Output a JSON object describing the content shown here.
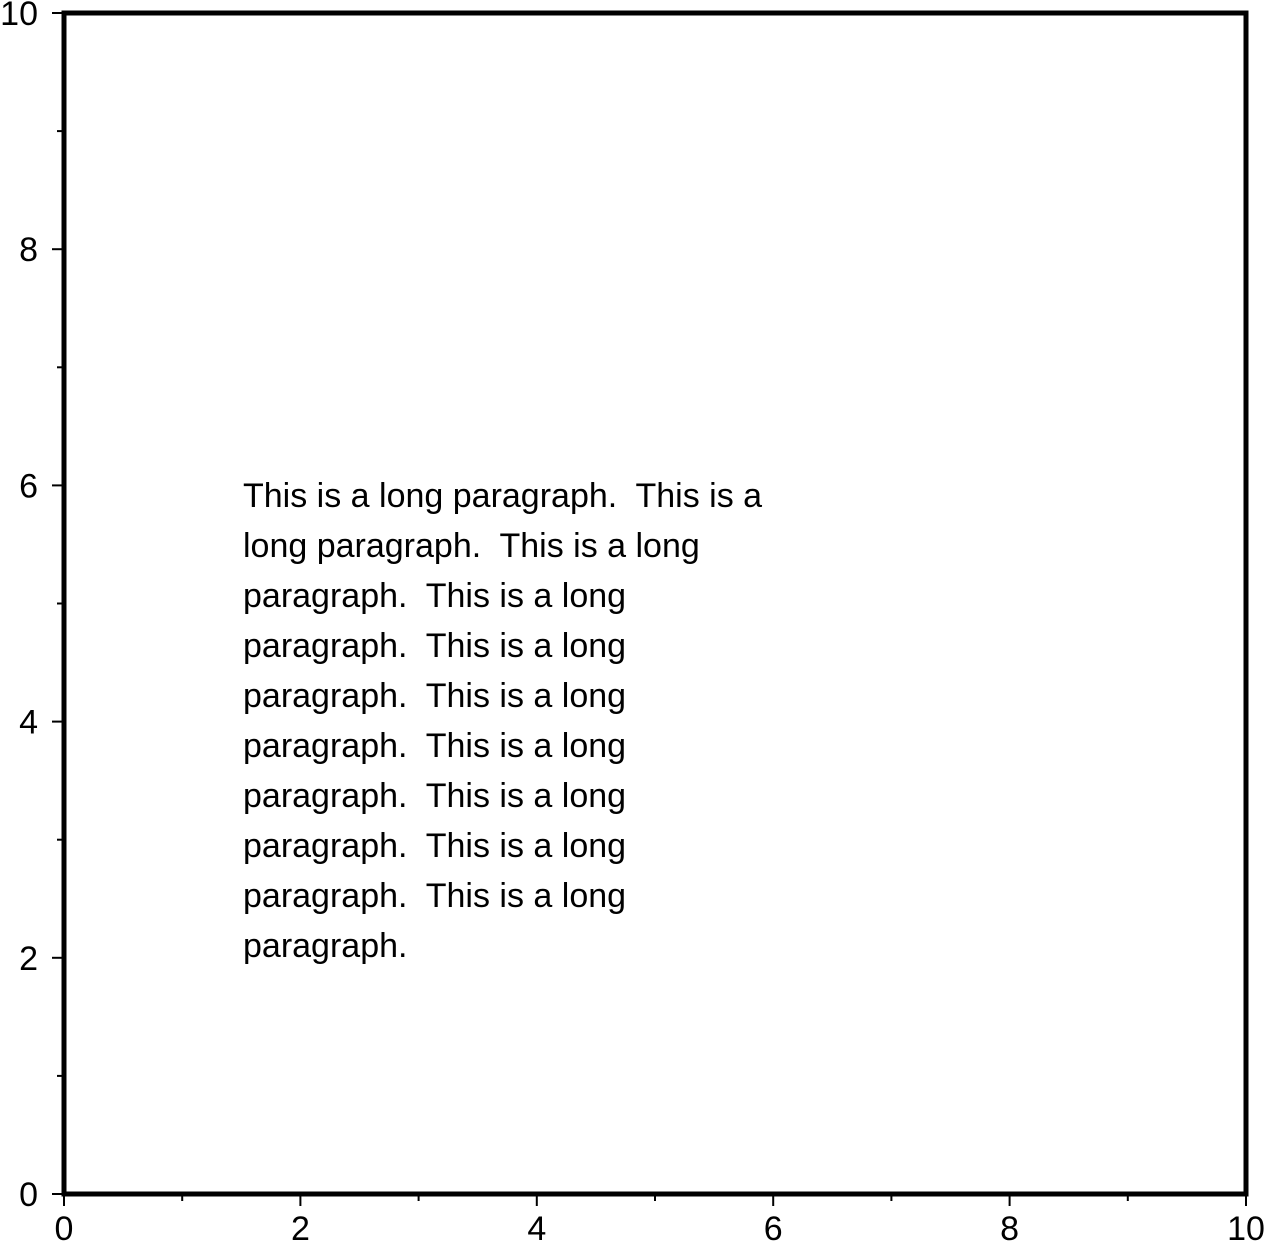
{
  "chart_data": {
    "type": "text",
    "xlim": [
      0,
      10
    ],
    "ylim": [
      0,
      10
    ],
    "xticks": [
      0,
      2,
      4,
      6,
      8,
      10
    ],
    "yticks": [
      0,
      2,
      4,
      6,
      8,
      10
    ],
    "xminorticks": [
      1,
      3,
      5,
      7,
      9
    ],
    "yminorticks": [
      1,
      3,
      5,
      7,
      9
    ],
    "annotation_lines": [
      "This is a long paragraph.  This is a",
      "long paragraph.  This is a long",
      "paragraph.  This is a long",
      "paragraph.  This is a long",
      "paragraph.  This is a long",
      "paragraph.  This is a long",
      "paragraph.  This is a long",
      "paragraph.  This is a long",
      "paragraph.  This is a long",
      "paragraph."
    ]
  }
}
